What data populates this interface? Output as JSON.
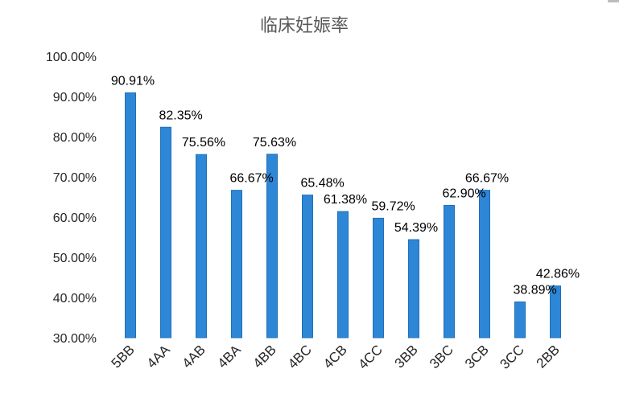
{
  "chart_data": {
    "type": "bar",
    "title": "临床妊娠率",
    "xlabel": "",
    "ylabel": "",
    "categories": [
      "5BB",
      "4AA",
      "4AB",
      "4BA",
      "4BB",
      "4BC",
      "4CB",
      "4CC",
      "3BB",
      "3BC",
      "3CB",
      "3CC",
      "2BB"
    ],
    "values": [
      90.91,
      82.35,
      75.56,
      66.67,
      75.63,
      65.48,
      61.38,
      59.72,
      54.39,
      62.9,
      66.67,
      38.89,
      42.86
    ],
    "value_labels": [
      "90.91%",
      "82.35%",
      "75.56%",
      "66.67%",
      "75.63%",
      "65.48%",
      "61.38%",
      "59.72%",
      "54.39%",
      "62.90%",
      "66.67%",
      "38.89%",
      "42.86%"
    ],
    "ylim": [
      30,
      100
    ],
    "yticks": [
      30,
      40,
      50,
      60,
      70,
      80,
      90,
      100
    ],
    "ytick_labels": [
      "30.00%",
      "40.00%",
      "50.00%",
      "60.00%",
      "70.00%",
      "80.00%",
      "90.00%",
      "100.00%"
    ],
    "grid": false,
    "legend": "none",
    "bar_color": "#2E86D6",
    "bar_edge_color": "#1F6FB8"
  }
}
